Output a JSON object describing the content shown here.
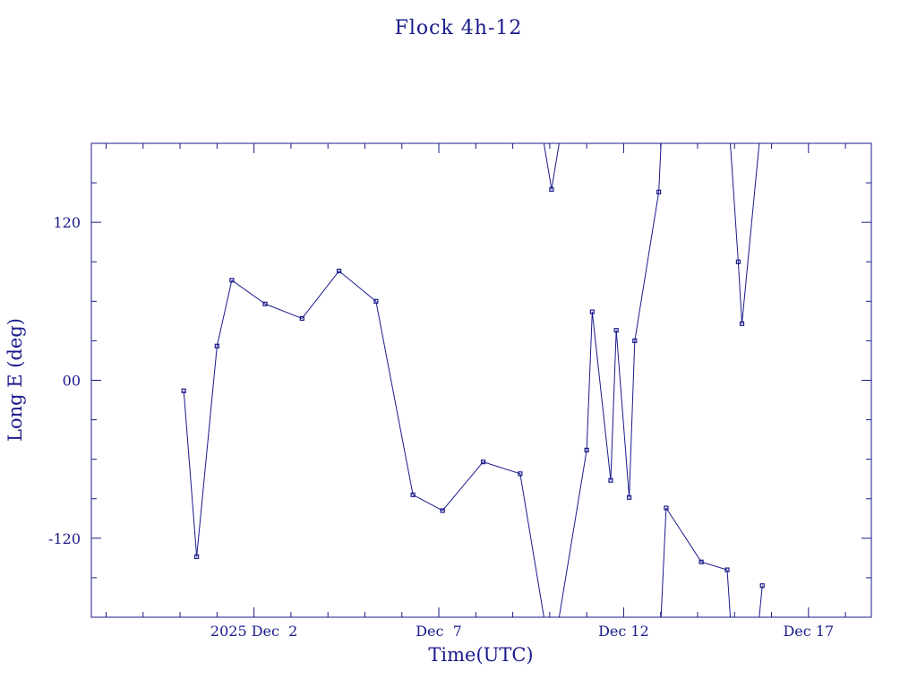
{
  "chart_data": {
    "type": "line",
    "title": "Flock 4h-12",
    "xlabel": "Time(UTC)",
    "ylabel": "Long E (deg)",
    "x_tick_labels": [
      "2025 Dec  2",
      "Dec  7",
      "Dec 12",
      "Dec 17"
    ],
    "y_tick_labels": [
      "-120",
      "00",
      "120"
    ],
    "x_ticks_days": [
      2,
      7,
      12,
      17
    ],
    "y_ticks": [
      -120,
      0,
      120
    ],
    "xlim_days": [
      -2.4,
      18.7
    ],
    "ylim": [
      -180,
      180
    ],
    "grid": false,
    "color": "#1a1a8c",
    "series": [
      {
        "points": [
          {
            "t": 0.1,
            "y": -8
          },
          {
            "t": 0.45,
            "y": -134
          },
          {
            "t": 1.0,
            "y": 26
          },
          {
            "t": 1.4,
            "y": 76
          },
          {
            "t": 2.3,
            "y": 58
          },
          {
            "t": 3.3,
            "y": 47
          },
          {
            "t": 4.3,
            "y": 83
          },
          {
            "t": 5.3,
            "y": 60
          },
          {
            "t": 6.3,
            "y": -87
          },
          {
            "t": 7.1,
            "y": -99
          },
          {
            "t": 8.2,
            "y": -62
          },
          {
            "t": 9.2,
            "y": -71
          },
          {
            "t": 10.05,
            "y": 145
          },
          {
            "t": 11.0,
            "y": -53
          },
          {
            "t": 11.15,
            "y": 52
          },
          {
            "t": 11.65,
            "y": -76
          },
          {
            "t": 11.8,
            "y": 38
          },
          {
            "t": 12.15,
            "y": -89
          },
          {
            "t": 12.3,
            "y": 30
          },
          {
            "t": 12.95,
            "y": 143
          },
          {
            "t": 13.15,
            "y": -97
          },
          {
            "t": 14.1,
            "y": -138
          },
          {
            "t": 14.8,
            "y": -144
          },
          {
            "t": 15.1,
            "y": 90
          },
          {
            "t": 15.2,
            "y": 43
          },
          {
            "t": 15.75,
            "y": -156
          }
        ],
        "connections": [
          [
            0,
            1,
            "direct"
          ],
          [
            1,
            2,
            "direct"
          ],
          [
            2,
            3,
            "direct"
          ],
          [
            3,
            4,
            "direct"
          ],
          [
            4,
            5,
            "direct"
          ],
          [
            5,
            6,
            "direct"
          ],
          [
            6,
            7,
            "direct"
          ],
          [
            7,
            8,
            "direct"
          ],
          [
            8,
            9,
            "direct"
          ],
          [
            9,
            10,
            "direct"
          ],
          [
            10,
            11,
            "direct"
          ],
          [
            11,
            12,
            "wrap"
          ],
          [
            12,
            13,
            "wrap"
          ],
          [
            13,
            14,
            "direct"
          ],
          [
            14,
            15,
            "direct"
          ],
          [
            15,
            16,
            "direct"
          ],
          [
            16,
            17,
            "direct"
          ],
          [
            17,
            18,
            "direct"
          ],
          [
            18,
            19,
            "direct"
          ],
          [
            19,
            20,
            "wrap"
          ],
          [
            20,
            21,
            "direct"
          ],
          [
            21,
            22,
            "direct"
          ],
          [
            22,
            23,
            "wrap"
          ],
          [
            23,
            24,
            "direct"
          ],
          [
            24,
            25,
            "wrap"
          ]
        ]
      }
    ]
  }
}
